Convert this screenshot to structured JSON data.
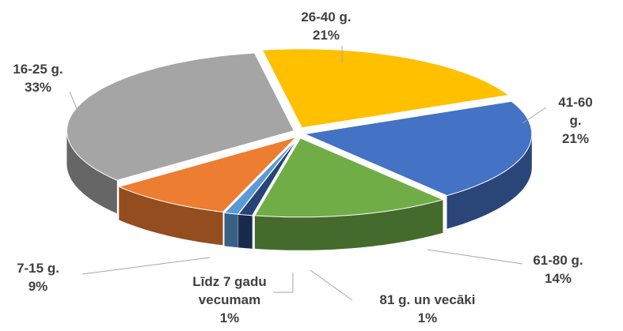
{
  "chart_data": {
    "type": "pie",
    "categories": [
      "26-40 g.",
      "41-60 g.",
      "61-80 g.",
      "81 g. un vecāki",
      "Līdz 7 gadu vecumam",
      "7-15 g.",
      "16-25 g."
    ],
    "values": [
      21,
      21,
      14,
      1,
      1,
      9,
      33
    ],
    "value_labels": [
      "21%",
      "21%",
      "14%",
      "1%",
      "1%",
      "9%",
      "33%"
    ],
    "colors": [
      "#FFC000",
      "#4472C4",
      "#70AD47",
      "#264478",
      "#5B9BD5",
      "#ED7D31",
      "#A5A5A5"
    ]
  }
}
